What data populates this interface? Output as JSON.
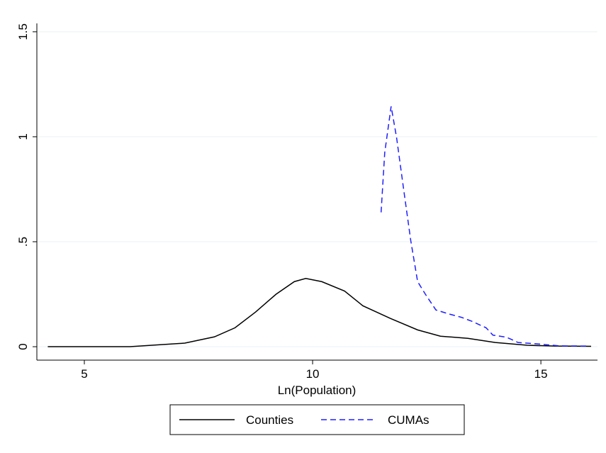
{
  "chart_data": {
    "type": "line",
    "x_label": "Ln(Population)",
    "xlim": [
      3.96,
      16.24
    ],
    "ylim": [
      -0.064,
      1.54
    ],
    "xticks": [
      5,
      10,
      15
    ],
    "yticks": [
      0,
      {
        "value": 0.5,
        "label": ".5"
      },
      1,
      1.5
    ],
    "grid": true,
    "legend": "bottom",
    "series": [
      {
        "name": "Counties",
        "color": "#000000",
        "dash": false,
        "x": [
          4.2,
          6,
          7.2,
          7.85,
          8.3,
          8.75,
          9.2,
          9.6,
          9.85,
          10.2,
          10.7,
          11.1,
          11.7,
          12.3,
          12.8,
          13.4,
          14,
          14.7,
          15.3,
          16.1
        ],
        "values": [
          0,
          0,
          0.017,
          0.047,
          0.09,
          0.165,
          0.25,
          0.31,
          0.325,
          0.31,
          0.265,
          0.195,
          0.135,
          0.08,
          0.05,
          0.04,
          0.02,
          0.007,
          0.003,
          0.002
        ]
      },
      {
        "name": "CUMAs",
        "color": "#1f1fff",
        "dash": true,
        "x": [
          11.5,
          11.58,
          11.72,
          11.84,
          12.0,
          12.15,
          12.3,
          12.47,
          12.7,
          13.0,
          13.26,
          13.5,
          13.8,
          13.95,
          14.25,
          14.5,
          14.95,
          15.4,
          16.0
        ],
        "values": [
          0.64,
          0.925,
          1.145,
          0.995,
          0.74,
          0.505,
          0.31,
          0.25,
          0.175,
          0.155,
          0.14,
          0.12,
          0.09,
          0.055,
          0.045,
          0.02,
          0.013,
          0.004,
          0.003
        ]
      }
    ]
  }
}
